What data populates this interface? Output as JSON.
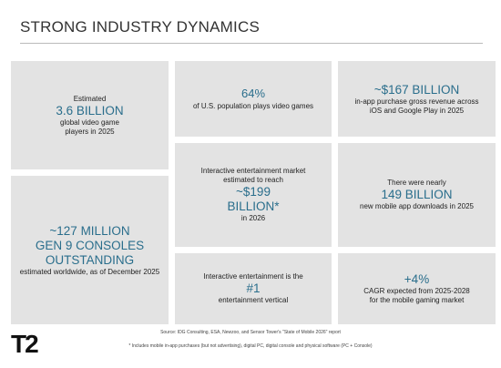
{
  "header": {
    "title": "STRONG INDUSTRY DYNAMICS"
  },
  "tiles": [
    {
      "lines": [
        "Estimated",
        "3.6 BILLION",
        "global video game",
        "players in 2025"
      ]
    },
    {
      "lines": [
        "~127 MILLION",
        "GEN 9 CONSOLES",
        "OUTSTANDING",
        "estimated worldwide, as of December 2025"
      ]
    },
    {
      "lines": [
        "64%",
        "of U.S. population plays video games"
      ]
    },
    {
      "lines": [
        "Interactive entertainment market",
        "estimated to reach",
        "~$199",
        "BILLION*",
        "in 2026"
      ]
    },
    {
      "lines": [
        "Interactive entertainment is the",
        "#1",
        "entertainment vertical"
      ]
    },
    {
      "lines": [
        "~$167 BILLION",
        "in-app purchase gross revenue across",
        "iOS and Google Play in 2025"
      ]
    },
    {
      "lines": [
        "There were nearly",
        "149 BILLION",
        "new mobile app downloads in 2025"
      ]
    },
    {
      "lines": [
        "+4%",
        "CAGR expected from 2025-2028",
        "for the mobile gaming market"
      ]
    }
  ],
  "footer": {
    "source": "Source: IDG Consulting, ESA, Newzoo, and Sensor Tower's \"State of Mobile 2026\" report",
    "note": "* Includes mobile in-app purchases (but not advertising), digital PC, digital console and physical software (PC + Console)",
    "logo": "T2"
  }
}
